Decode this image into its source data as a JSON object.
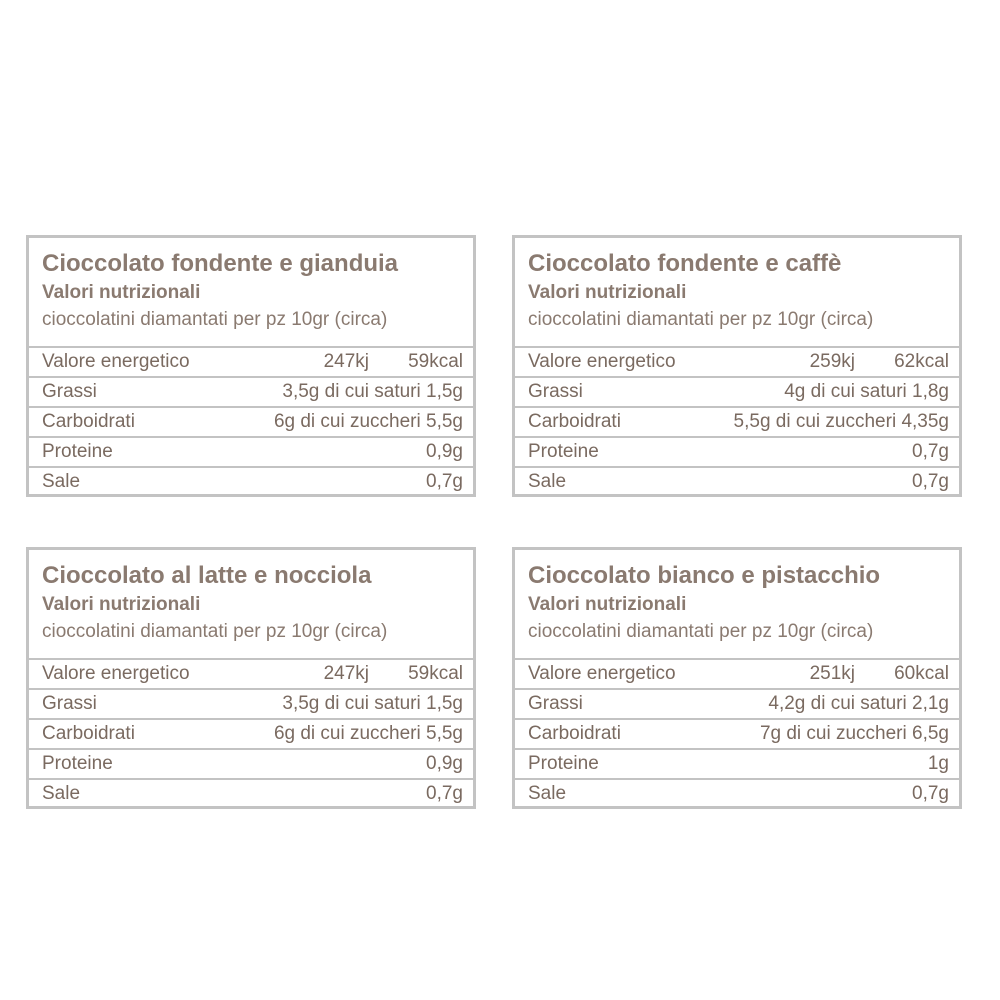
{
  "panels": [
    {
      "title": "Cioccolato fondente e gianduia",
      "subtitle": "Valori nutrizionali",
      "serving": "cioccolatini diamantati per pz 10gr (circa)",
      "energy": {
        "label": "Valore energetico",
        "kj": "247kj",
        "kcal": "59kcal"
      },
      "rows": [
        {
          "label": "Grassi",
          "value": "3,5g di cui saturi 1,5g"
        },
        {
          "label": "Carboidrati",
          "value": "6g di cui zuccheri 5,5g"
        },
        {
          "label": "Proteine",
          "value": "0,9g"
        },
        {
          "label": "Sale",
          "value": "0,7g"
        }
      ]
    },
    {
      "title": "Cioccolato fondente e caffè",
      "subtitle": "Valori nutrizionali",
      "serving": "cioccolatini diamantati per pz 10gr (circa)",
      "energy": {
        "label": "Valore energetico",
        "kj": "259kj",
        "kcal": "62kcal"
      },
      "rows": [
        {
          "label": "Grassi",
          "value": "4g di cui saturi 1,8g"
        },
        {
          "label": "Carboidrati",
          "value": "5,5g di cui zuccheri 4,35g"
        },
        {
          "label": "Proteine",
          "value": "0,7g"
        },
        {
          "label": "Sale",
          "value": "0,7g"
        }
      ]
    },
    {
      "title": "Cioccolato al latte e nocciola",
      "subtitle": "Valori nutrizionali",
      "serving": "cioccolatini diamantati per pz 10gr (circa)",
      "energy": {
        "label": "Valore energetico",
        "kj": "247kj",
        "kcal": "59kcal"
      },
      "rows": [
        {
          "label": "Grassi",
          "value": "3,5g di cui saturi 1,5g"
        },
        {
          "label": "Carboidrati",
          "value": "6g di cui zuccheri 5,5g"
        },
        {
          "label": "Proteine",
          "value": "0,9g"
        },
        {
          "label": "Sale",
          "value": "0,7g"
        }
      ]
    },
    {
      "title": "Cioccolato bianco e pistacchio",
      "subtitle": "Valori nutrizionali",
      "serving": "cioccolatini diamantati per pz 10gr (circa)",
      "energy": {
        "label": "Valore energetico",
        "kj": "251kj",
        "kcal": "60kcal"
      },
      "rows": [
        {
          "label": "Grassi",
          "value": "4,2g di cui saturi 2,1g"
        },
        {
          "label": "Carboidrati",
          "value": "7g di cui zuccheri 6,5g"
        },
        {
          "label": "Proteine",
          "value": "1g"
        },
        {
          "label": "Sale",
          "value": "0,7g"
        }
      ]
    }
  ]
}
